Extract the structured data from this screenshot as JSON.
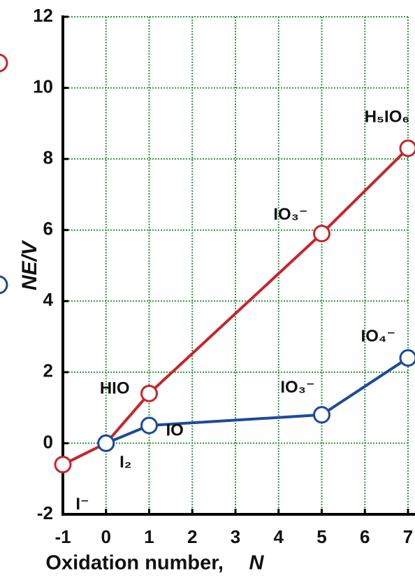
{
  "chart_data": {
    "type": "line",
    "x_label": "Oxidation number,",
    "x_label_symbol": "N",
    "y_label": "NE/V",
    "x": [
      -1,
      0,
      1,
      5,
      7
    ],
    "series": [
      {
        "color": "#c8242b",
        "values": [
          -0.6,
          0,
          1.4,
          5.9,
          8.3
        ],
        "point_labels": [
          "I⁻",
          "I₂",
          "HIO",
          "IO₃⁻",
          "H₅IO₆"
        ]
      },
      {
        "color": "#1b4b9b",
        "values": [
          null,
          0,
          0.5,
          0.8,
          2.4
        ],
        "point_labels": [
          null,
          null,
          "IO",
          "IO₃⁻",
          "IO₄⁻"
        ]
      }
    ],
    "xlim": [
      -1,
      7
    ],
    "xticks": [
      -1,
      0,
      1,
      2,
      3,
      4,
      5,
      6,
      7
    ],
    "ylim": [
      -2,
      12
    ],
    "yticks": [
      -2,
      0,
      2,
      4,
      6,
      8,
      10,
      12
    ],
    "grid": true,
    "grid_color": "#2a9a3a"
  }
}
